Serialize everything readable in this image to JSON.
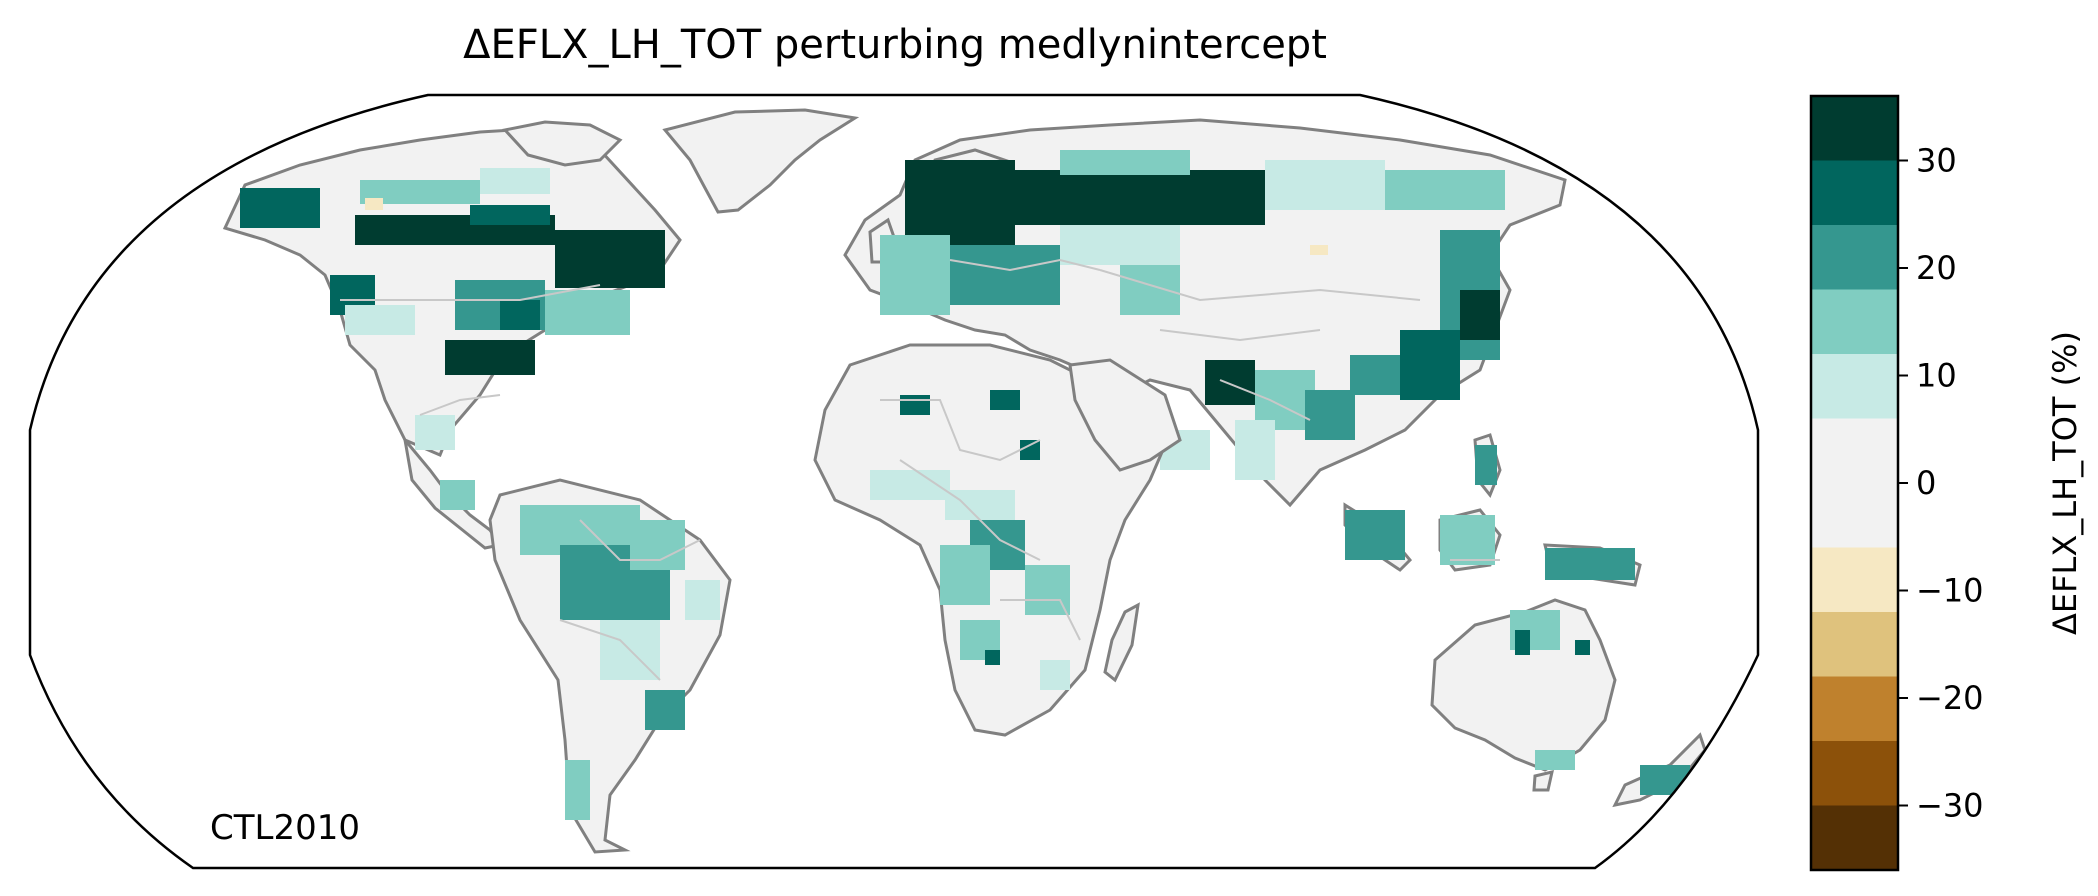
{
  "figure": {
    "title": "ΔEFLX_LH_TOT perturbing medlynintercept",
    "map_label": "CTL2010",
    "projection": "robinson"
  },
  "colorbar": {
    "label": "ΔEFLX_LH_TOT (%)",
    "range": [
      -36,
      36
    ],
    "ticks": [
      {
        "value": 30,
        "label": "30"
      },
      {
        "value": 20,
        "label": "20"
      },
      {
        "value": 10,
        "label": "10"
      },
      {
        "value": 0,
        "label": "0"
      },
      {
        "value": -10,
        "label": "−10"
      },
      {
        "value": -20,
        "label": "−20"
      },
      {
        "value": -30,
        "label": "−30"
      }
    ],
    "bins": [
      {
        "from": 30,
        "to": 36,
        "color": "#003c30"
      },
      {
        "from": 24,
        "to": 30,
        "color": "#01665e"
      },
      {
        "from": 18,
        "to": 24,
        "color": "#35978f"
      },
      {
        "from": 12,
        "to": 18,
        "color": "#80cdc1"
      },
      {
        "from": 6,
        "to": 12,
        "color": "#c7eae5"
      },
      {
        "from": -6,
        "to": 6,
        "color": "#f2f2f2"
      },
      {
        "from": -12,
        "to": -6,
        "color": "#f6e8c3"
      },
      {
        "from": -18,
        "to": -12,
        "color": "#dfc27d"
      },
      {
        "from": -24,
        "to": -18,
        "color": "#bf812d"
      },
      {
        "from": -30,
        "to": -24,
        "color": "#8c510a"
      },
      {
        "from": -36,
        "to": -30,
        "color": "#543005"
      }
    ]
  },
  "colors": {
    "coastline": "#808080",
    "borders": "#c8c8c8",
    "land_neutral": "#f2f2f2"
  }
}
